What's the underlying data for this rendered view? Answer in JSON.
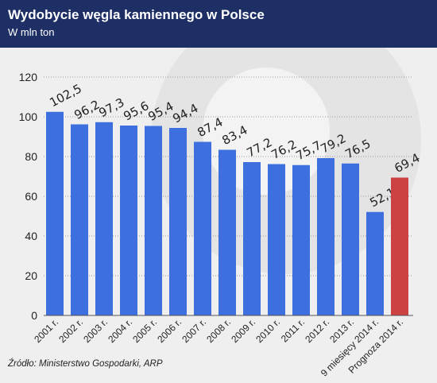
{
  "header": {
    "title": "Wydobycie węgla kamiennego w Polsce",
    "subtitle": "W mln ton"
  },
  "source": "Źródło: Ministerstwo Gospodarki, ARP",
  "colors": {
    "header_bg": "#1e2f66",
    "bar": "#3d6fde",
    "bar_forecast": "#cc4141",
    "background": "#efefef"
  },
  "chart_data": {
    "type": "bar",
    "title": "Wydobycie węgla kamiennego w Polsce",
    "subtitle": "W mln ton",
    "xlabel": "",
    "ylabel": "",
    "ylim": [
      0,
      120
    ],
    "yticks": [
      0,
      20,
      40,
      60,
      80,
      100,
      120
    ],
    "grid": true,
    "categories": [
      "2001 r.",
      "2002 r.",
      "2003 r.",
      "2004 r.",
      "2005 r.",
      "2006 r.",
      "2007 r.",
      "2008 r.",
      "2009 r.",
      "2010 r.",
      "2011 r.",
      "2012 r.",
      "2013 r.",
      "9 miesięcy 2014 r.",
      "Prognoza 2014 r."
    ],
    "values": [
      102.5,
      96.2,
      97.3,
      95.6,
      95.4,
      94.4,
      87.4,
      83.4,
      77.2,
      76.2,
      75.7,
      79.2,
      76.5,
      52.1,
      69.4
    ],
    "value_labels": [
      "102,5",
      "96,2",
      "97,3",
      "95,6",
      "95,4",
      "94,4",
      "87,4",
      "83,4",
      "77,2",
      "76,2",
      "75,7",
      "79,2",
      "76,5",
      "52,1",
      "69,4"
    ],
    "highlight": [
      false,
      false,
      false,
      false,
      false,
      false,
      false,
      false,
      false,
      false,
      false,
      false,
      false,
      false,
      true
    ]
  }
}
